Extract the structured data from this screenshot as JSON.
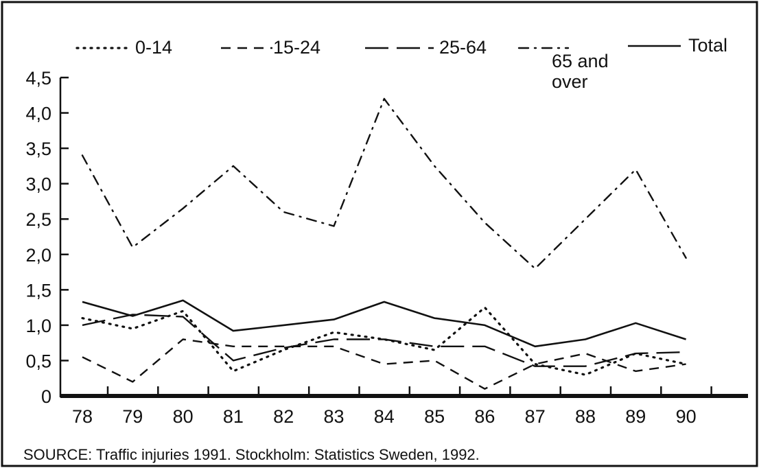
{
  "chart_data": {
    "type": "line",
    "categories": [
      "78",
      "79",
      "80",
      "81",
      "82",
      "83",
      "84",
      "85",
      "86",
      "87",
      "88",
      "89",
      "90"
    ],
    "y_ticks": [
      "0",
      "0,5",
      "1,0",
      "1,5",
      "2,0",
      "2,5",
      "3,0",
      "3,5",
      "4,0",
      "4,5"
    ],
    "ylim": [
      0,
      4.5
    ],
    "grid": false,
    "legend_position": "top",
    "series": [
      {
        "name": "0-14",
        "style": "dotted",
        "values": [
          1.1,
          0.95,
          1.2,
          0.35,
          0.65,
          0.9,
          0.8,
          0.65,
          1.25,
          0.45,
          0.3,
          0.6,
          0.45
        ]
      },
      {
        "name": "15-24",
        "style": "short-dash",
        "values": [
          0.55,
          0.2,
          0.8,
          0.7,
          0.7,
          0.7,
          0.45,
          0.5,
          0.1,
          0.45,
          0.6,
          0.35,
          0.45
        ]
      },
      {
        "name": "25-64",
        "style": "long-dash",
        "values": [
          1.0,
          1.15,
          1.12,
          0.5,
          0.68,
          0.8,
          0.8,
          0.7,
          0.7,
          0.42,
          0.42,
          0.6,
          0.62
        ]
      },
      {
        "name": "65 and over",
        "style": "dash-dot",
        "values": [
          3.4,
          2.1,
          2.65,
          3.25,
          2.6,
          2.4,
          4.2,
          3.25,
          2.45,
          1.8,
          2.5,
          3.2,
          1.95
        ]
      },
      {
        "name": "Total",
        "style": "solid",
        "values": [
          1.33,
          1.13,
          1.35,
          0.92,
          1.0,
          1.08,
          1.33,
          1.1,
          1.0,
          0.7,
          0.8,
          1.03,
          0.8
        ]
      }
    ],
    "source": "SOURCE: Traffic injuries 1991. Stockholm: Statistics Sweden, 1992."
  }
}
